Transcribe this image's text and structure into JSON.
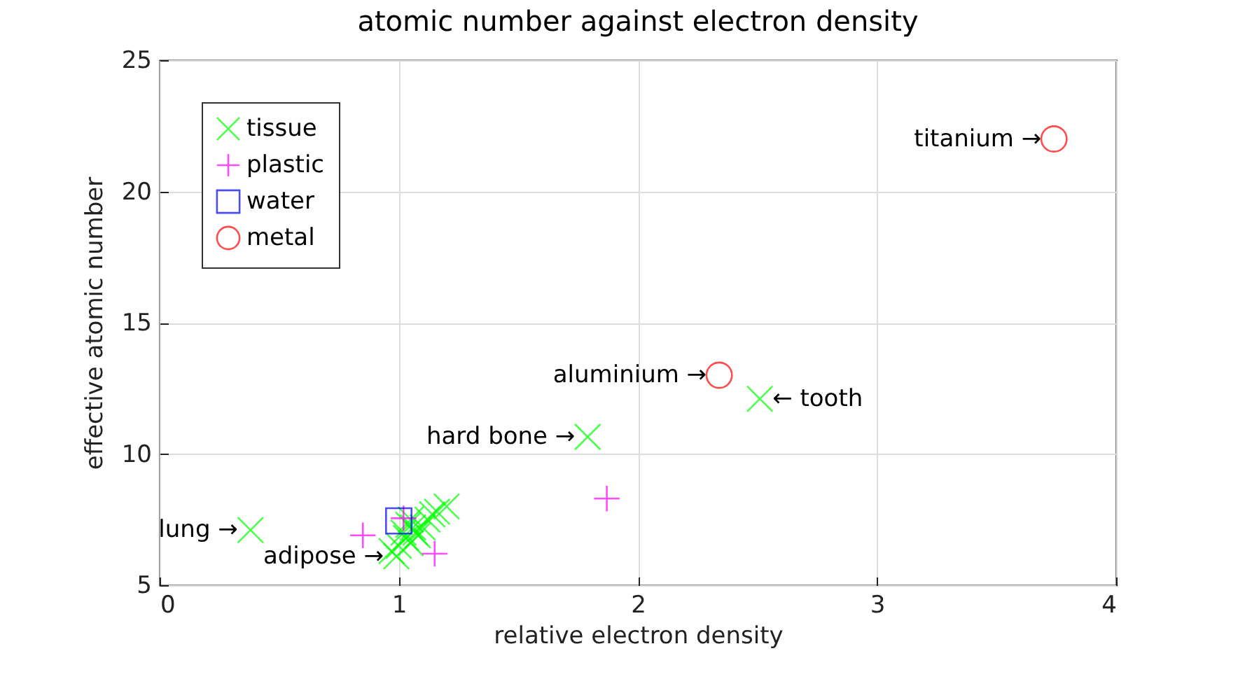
{
  "chart_data": {
    "type": "scatter",
    "title": "atomic number against electron density",
    "xlabel": "relative electron density",
    "ylabel": "effective atomic number",
    "xlim": [
      0,
      4
    ],
    "xticks": [
      0,
      1,
      2,
      3,
      4
    ],
    "ylim": [
      5,
      25
    ],
    "yticks": [
      5,
      10,
      15,
      20,
      25
    ],
    "grid": true,
    "legend": "top left",
    "series": [
      {
        "name": "tissue",
        "color": "#00ff00",
        "marker": "cross",
        "x": [
          0.38,
          0.99,
          1.79,
          2.51,
          0.97,
          1.0,
          1.02,
          1.03,
          1.04,
          1.05,
          1.05,
          1.06,
          1.07,
          1.08,
          1.1,
          1.12,
          1.14,
          1.16,
          1.2
        ],
        "values": [
          7.1,
          6.1,
          10.65,
          12.1,
          6.3,
          6.5,
          7.0,
          6.8,
          7.3,
          7.5,
          6.6,
          7.2,
          7.0,
          6.9,
          7.2,
          7.5,
          7.7,
          7.8,
          8.0
        ]
      },
      {
        "name": "plastic",
        "color": "#ff00ff",
        "marker": "plus",
        "x": [
          0.85,
          1.02,
          1.15,
          1.87
        ],
        "values": [
          6.9,
          7.55,
          6.2,
          8.3
        ]
      },
      {
        "name": "water",
        "color": "#0000ff",
        "marker": "square",
        "x": [
          1.0
        ],
        "values": [
          7.45
        ]
      },
      {
        "name": "metal",
        "color": "#ff0000",
        "marker": "circle",
        "x": [
          2.34,
          3.74
        ],
        "values": [
          13.0,
          22.0
        ]
      }
    ],
    "annotations": [
      {
        "text": "lung →",
        "x": 0.38,
        "y": 7.1
      },
      {
        "text": "adipose →",
        "x": 0.99,
        "y": 6.1
      },
      {
        "text": "hard bone →",
        "x": 1.79,
        "y": 10.65
      },
      {
        "text": "← tooth",
        "x": 2.51,
        "y": 12.1
      },
      {
        "text": "aluminium →",
        "x": 2.34,
        "y": 13.0
      },
      {
        "text": "titanium →",
        "x": 3.74,
        "y": 22.0
      }
    ]
  }
}
